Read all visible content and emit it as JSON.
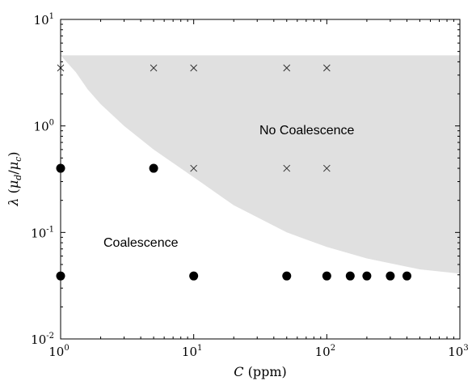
{
  "chart_data": {
    "type": "scatter",
    "title": "",
    "xlabel": "C (ppm)",
    "ylabel": "λ (μd/μc)",
    "x_scale": "log",
    "y_scale": "log",
    "xlim": [
      1,
      1000
    ],
    "ylim": [
      0.01,
      10
    ],
    "grid": false,
    "x_ticks": [
      {
        "base": "10",
        "exp": "0",
        "value": 1
      },
      {
        "base": "10",
        "exp": "1",
        "value": 10
      },
      {
        "base": "10",
        "exp": "2",
        "value": 100
      },
      {
        "base": "10",
        "exp": "3",
        "value": 1000
      }
    ],
    "y_ticks": [
      {
        "base": "10",
        "exp": "-2",
        "value": 0.01
      },
      {
        "base": "10",
        "exp": "-1",
        "value": 0.1
      },
      {
        "base": "10",
        "exp": "0",
        "value": 1
      },
      {
        "base": "10",
        "exp": "1",
        "value": 10
      }
    ],
    "annotations": {
      "no_coalescence": "No Coalescence",
      "coalescence": "Coalescence"
    },
    "colors": {
      "region_fill": "#e0e0e0",
      "marker": "#000000"
    },
    "region_boundary": [
      [
        1.0,
        4.6
      ],
      [
        1.3,
        3.2
      ],
      [
        1.6,
        2.2
      ],
      [
        2.0,
        1.6
      ],
      [
        3.0,
        1.0
      ],
      [
        5.0,
        0.6
      ],
      [
        10.0,
        0.33
      ],
      [
        20.0,
        0.18
      ],
      [
        50.0,
        0.1
      ],
      [
        100.0,
        0.073
      ],
      [
        200.0,
        0.057
      ],
      [
        500.0,
        0.045
      ],
      [
        1000.0,
        0.041
      ]
    ],
    "region_top": 4.6,
    "series": [
      {
        "marker": "x",
        "points": [
          [
            1,
            3.5
          ],
          [
            5,
            3.5
          ],
          [
            10,
            3.5
          ],
          [
            50,
            3.5
          ],
          [
            100,
            3.5
          ],
          [
            10,
            0.4
          ],
          [
            50,
            0.4
          ],
          [
            100,
            0.4
          ]
        ]
      },
      {
        "marker": "filled-circle",
        "points": [
          [
            1,
            0.4
          ],
          [
            5,
            0.4
          ],
          [
            1,
            0.039
          ],
          [
            10,
            0.039
          ],
          [
            50,
            0.039
          ],
          [
            100,
            0.039
          ],
          [
            150,
            0.039
          ],
          [
            200,
            0.039
          ],
          [
            300,
            0.039
          ],
          [
            400,
            0.039
          ]
        ]
      }
    ]
  }
}
